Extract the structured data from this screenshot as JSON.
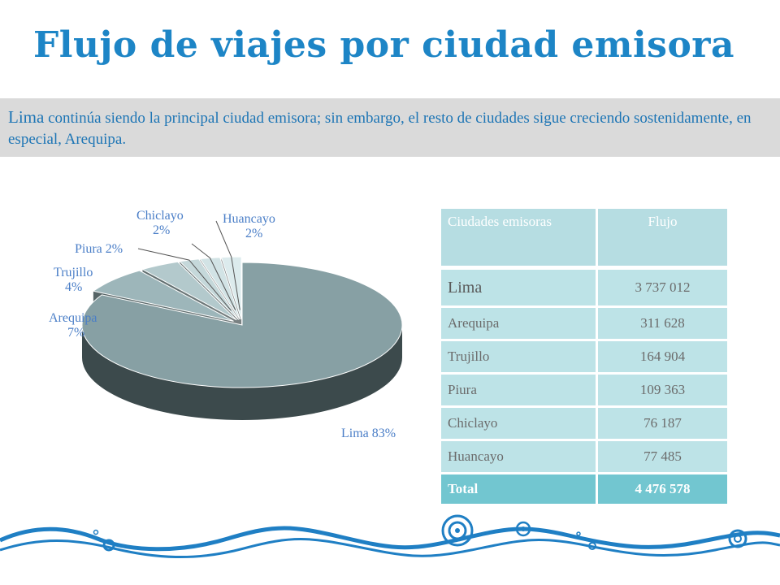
{
  "title": "Flujo de viajes por ciudad emisora",
  "banner": {
    "strong": "Lima",
    "text": " continúa siendo la principal ciudad emisora; sin embargo, el resto de ciudades sigue creciendo sostenidamente, en especial, Arequipa."
  },
  "chart_data": {
    "type": "pie",
    "title": "",
    "labels": [
      "Lima",
      "Arequipa",
      "Trujillo",
      "Piura",
      "Chiclayo",
      "Huancayo"
    ],
    "values": [
      83,
      7,
      4,
      2,
      2,
      2
    ],
    "unit": "%",
    "data_labels": [
      "Lima 83%",
      "Arequipa 7%",
      "Trujillo 4%",
      "Piura 2%",
      "Chiclayo 2%",
      "Huancayo 2%"
    ],
    "style": "3d-exploded",
    "colors": [
      "#87a0a4",
      "#9db6ba",
      "#b3c9cc",
      "#c5d8da",
      "#d2e3e5",
      "#dcebed"
    ],
    "legend": "none"
  },
  "table": {
    "headers": [
      "Ciudades emisoras",
      "Flujo"
    ],
    "rows": [
      [
        "Lima",
        "3 737 012"
      ],
      [
        "Arequipa",
        "311 628"
      ],
      [
        "Trujillo",
        "164 904"
      ],
      [
        "Piura",
        "109 363"
      ],
      [
        "Chiclayo",
        "76 187"
      ],
      [
        "Huancayo",
        "77 485"
      ]
    ],
    "total_label": "Total",
    "total_value": "4 476 578"
  },
  "colors": {
    "title": "#1d85c6",
    "banner_bg": "#dadada",
    "table_header": "#b6dde2",
    "table_cell": "#bde3e7",
    "table_total": "#72c6d0",
    "wave": "#1f7fc4"
  }
}
